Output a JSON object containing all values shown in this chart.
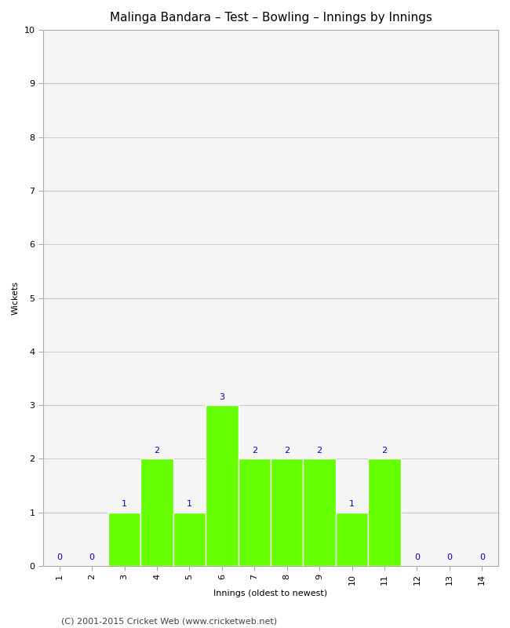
{
  "title": "Malinga Bandara – Test – Bowling – Innings by Innings",
  "xlabel": "Innings (oldest to newest)",
  "ylabel": "Wickets",
  "innings": [
    1,
    2,
    3,
    4,
    5,
    6,
    7,
    8,
    9,
    10,
    11,
    12,
    13,
    14
  ],
  "wickets": [
    0,
    0,
    1,
    2,
    1,
    3,
    2,
    2,
    2,
    1,
    2,
    0,
    0,
    0
  ],
  "bar_color": "#66ff00",
  "bar_edge_color": "#ffffff",
  "label_color": "#0000cc",
  "ylim": [
    0,
    10
  ],
  "xlim": [
    0.5,
    14.5
  ],
  "yticks": [
    0,
    1,
    2,
    3,
    4,
    5,
    6,
    7,
    8,
    9,
    10
  ],
  "xticks": [
    1,
    2,
    3,
    4,
    5,
    6,
    7,
    8,
    9,
    10,
    11,
    12,
    13,
    14
  ],
  "background_color": "#ffffff",
  "plot_bg_color": "#f5f5f5",
  "title_fontsize": 11,
  "axis_label_fontsize": 8,
  "tick_fontsize": 8,
  "annotation_fontsize": 8,
  "footer": "(C) 2001-2015 Cricket Web (www.cricketweb.net)",
  "footer_fontsize": 8,
  "bar_width": 1.0,
  "grid_color": "#cccccc"
}
